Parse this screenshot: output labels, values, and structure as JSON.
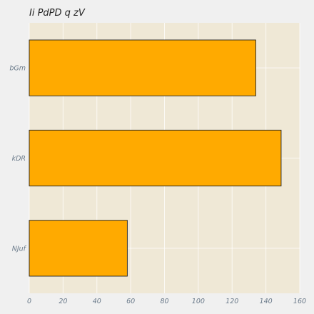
{
  "chart_data": {
    "type": "bar",
    "orientation": "horizontal",
    "title": "Ii PdPD q   zV",
    "xlabel": "",
    "ylabel": "",
    "categories": [
      "bGm",
      "kDR",
      "NJuf"
    ],
    "values": [
      134,
      149,
      58
    ],
    "xlim": [
      0,
      160
    ],
    "x_ticks": [
      0,
      20,
      40,
      60,
      80,
      100,
      120,
      140,
      160
    ],
    "grid": true,
    "legend": "none",
    "colors": {
      "bar": "#ffaa00",
      "bar_edge": "#222222",
      "plot_background": "#efe8d6",
      "figure_background": "#f0f0f0",
      "grid": "#ffffff"
    }
  }
}
